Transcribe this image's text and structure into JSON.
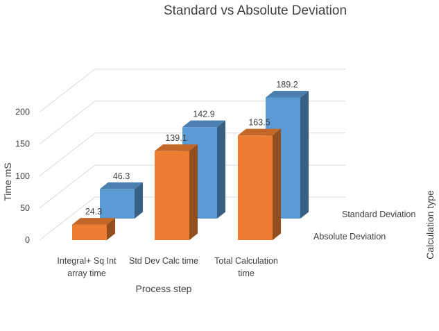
{
  "chart_data": {
    "type": "bar",
    "subtype": "3d-column",
    "title": "Standard vs Absolute Deviation",
    "xlabel": "Process step",
    "ylabel": "Time mS",
    "zlabel": "Calculation type",
    "categories": [
      "Integral+ Sq Int array time",
      "Std Dev Calc time",
      "Total Calculation time"
    ],
    "category_lines": [
      [
        "Integral+ Sq Int",
        "array time"
      ],
      [
        "Std Dev Calc time"
      ],
      [
        "Total Calculation",
        "time"
      ]
    ],
    "series": [
      {
        "name": "Absolute Deviation",
        "values": [
          24.3,
          139.1,
          163.5
        ],
        "labels": [
          "24.3",
          "139.1",
          "163.5"
        ],
        "color": "#ED7D31"
      },
      {
        "name": "Standard Deviation",
        "values": [
          46.3,
          142.9,
          189.2
        ],
        "labels": [
          "46.3",
          "142.9",
          "189.2"
        ],
        "color": "#5B9BD5"
      }
    ],
    "ylim": [
      0,
      200
    ],
    "yticks": [
      "0",
      "50",
      "100",
      "150",
      "200"
    ],
    "grid": true,
    "legend": "none"
  }
}
